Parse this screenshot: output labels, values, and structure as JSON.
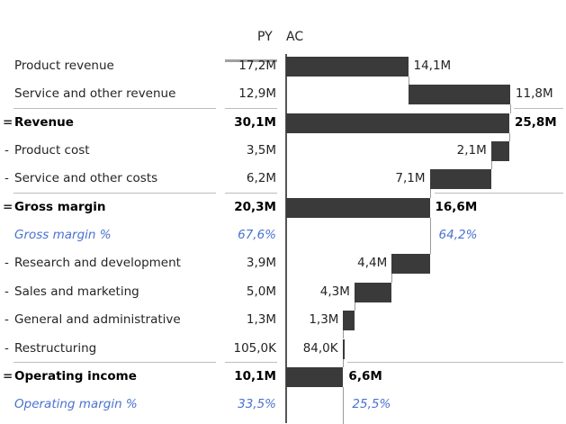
{
  "header": {
    "py": "PY",
    "ac": "AC"
  },
  "colors": {
    "bar": "#3a3a3a",
    "percent_text": "#4a72d0",
    "separator": "#bdbdbd"
  },
  "rows": [
    {
      "prefix": "",
      "label": "Product revenue",
      "py": "17,2M",
      "ac": "14,1M",
      "kind": "delta",
      "value": 14.1
    },
    {
      "prefix": "",
      "label": "Service and other revenue",
      "py": "12,9M",
      "ac": "11,8M",
      "kind": "delta",
      "value": 11.8
    },
    {
      "prefix": "=",
      "label": "Revenue",
      "py": "30,1M",
      "ac": "25,8M",
      "kind": "total",
      "value": 25.8
    },
    {
      "prefix": "-",
      "label": "Product cost",
      "py": "3,5M",
      "ac": "2,1M",
      "kind": "delta",
      "value": -2.1
    },
    {
      "prefix": "-",
      "label": "Service and other costs",
      "py": "6,2M",
      "ac": "7,1M",
      "kind": "delta",
      "value": -7.1
    },
    {
      "prefix": "=",
      "label": "Gross margin",
      "py": "20,3M",
      "ac": "16,6M",
      "kind": "total",
      "value": 16.6
    },
    {
      "prefix": "",
      "label": "Gross margin %",
      "py": "67,6%",
      "ac": "64,2%",
      "kind": "percent"
    },
    {
      "prefix": "-",
      "label": "Research and development",
      "py": "3,9M",
      "ac": "4,4M",
      "kind": "delta",
      "value": -4.4
    },
    {
      "prefix": "-",
      "label": "Sales and marketing",
      "py": "5,0M",
      "ac": "4,3M",
      "kind": "delta",
      "value": -4.3
    },
    {
      "prefix": "-",
      "label": "General and administrative",
      "py": "1,3M",
      "ac": "1,3M",
      "kind": "delta",
      "value": -1.3
    },
    {
      "prefix": "-",
      "label": "Restructuring",
      "py": "105,0K",
      "ac": "84,0K",
      "kind": "delta",
      "value": -0.084
    },
    {
      "prefix": "=",
      "label": "Operating income",
      "py": "10,1M",
      "ac": "6,6M",
      "kind": "total",
      "value": 6.6
    },
    {
      "prefix": "",
      "label": "Operating margin %",
      "py": "33,5%",
      "ac": "25,5%",
      "kind": "percent"
    }
  ]
}
